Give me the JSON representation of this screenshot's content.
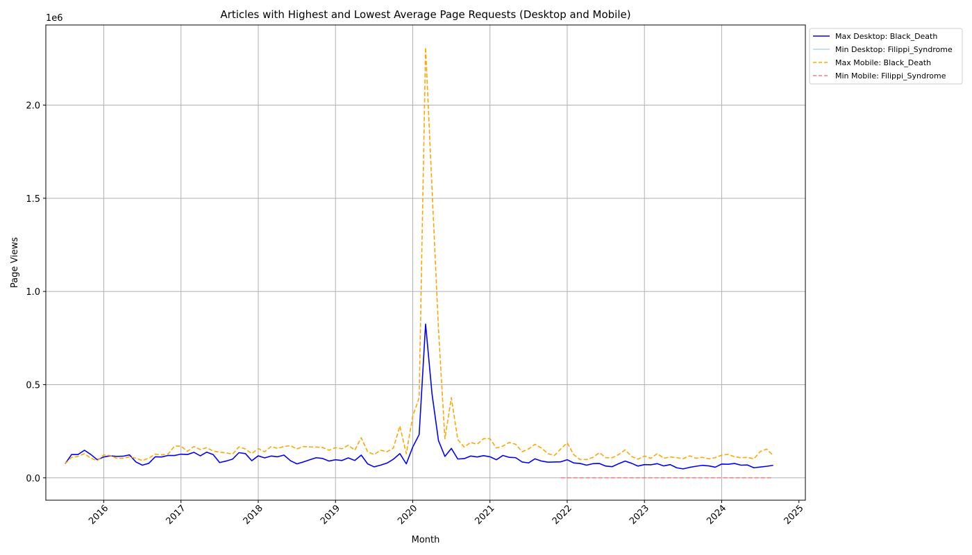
{
  "chart_data": {
    "type": "line",
    "title": "Articles with Highest and Lowest Average Page Requests (Desktop and Mobile)",
    "xlabel": "Month",
    "ylabel": "Page Views",
    "y_offset_label": "1e6",
    "x_ticks": [
      "2016",
      "2017",
      "2018",
      "2019",
      "2020",
      "2021",
      "2022",
      "2023",
      "2024",
      "2025"
    ],
    "y_ticks": [
      "0.0",
      "0.5",
      "1.0",
      "1.5",
      "2.0"
    ],
    "xlim": [
      "2015-04",
      "2025-02"
    ],
    "ylim": [
      -120000,
      2430000
    ],
    "grid": true,
    "legend_position": "outside top-right",
    "series": [
      {
        "name": "Max Desktop: Black_Death",
        "color": "#0000ff",
        "style": "solid",
        "start": "2015-07",
        "values": [
          75000,
          125000,
          125000,
          148000,
          125000,
          97000,
          112000,
          118000,
          115000,
          116000,
          123000,
          85000,
          68000,
          78000,
          113000,
          112000,
          120000,
          120000,
          127000,
          125000,
          137000,
          118000,
          138000,
          125000,
          82000,
          90000,
          100000,
          135000,
          130000,
          92000,
          118000,
          107000,
          117000,
          113000,
          122000,
          92000,
          75000,
          85000,
          97000,
          108000,
          104000,
          90000,
          97000,
          93000,
          107000,
          93000,
          122000,
          75000,
          59000,
          68000,
          79000,
          100000,
          130000,
          75000,
          165000,
          232000,
          825000,
          450000,
          200000,
          115000,
          158000,
          101000,
          103000,
          117000,
          112000,
          119000,
          113000,
          97000,
          120000,
          110000,
          108000,
          85000,
          80000,
          102000,
          90000,
          84000,
          85000,
          86000,
          97000,
          80000,
          77000,
          68000,
          76000,
          77000,
          63000,
          60000,
          76000,
          90000,
          78000,
          63000,
          71000,
          70000,
          76000,
          64000,
          71000,
          54000,
          48000,
          56000,
          62000,
          67000,
          64000,
          57000,
          74000,
          73000,
          77000,
          68000,
          69000,
          54000,
          58000,
          62000,
          67000
        ]
      },
      {
        "name": "Min Desktop: Filippi_Syndrome",
        "color": "#add8e6",
        "style": "solid",
        "start": "2021-12",
        "values": [
          110,
          90,
          100,
          95,
          105,
          90,
          100,
          95,
          110,
          100,
          90,
          95,
          100,
          105,
          90,
          95,
          100,
          110,
          95,
          90,
          100,
          95,
          105,
          100,
          90,
          95,
          100,
          110,
          100,
          95,
          90,
          100,
          105,
          95
        ]
      },
      {
        "name": "Max Mobile: Black_Death",
        "color": "#ffa500",
        "style": "dashed",
        "start": "2015-07",
        "values": [
          75000,
          110000,
          115000,
          130000,
          105000,
          92000,
          123000,
          120000,
          105000,
          105000,
          113000,
          105000,
          93000,
          105000,
          127000,
          123000,
          128000,
          170000,
          170000,
          142000,
          168000,
          152000,
          162000,
          143000,
          138000,
          134000,
          127000,
          166000,
          155000,
          130000,
          157000,
          140000,
          168000,
          158000,
          168000,
          173000,
          155000,
          168000,
          166000,
          165000,
          163000,
          148000,
          162000,
          156000,
          175000,
          148000,
          215000,
          140000,
          125000,
          148000,
          140000,
          160000,
          278000,
          130000,
          330000,
          430000,
          2310000,
          1550000,
          800000,
          210000,
          430000,
          205000,
          165000,
          190000,
          180000,
          210000,
          210000,
          160000,
          170000,
          190000,
          180000,
          140000,
          155000,
          180000,
          160000,
          130000,
          120000,
          155000,
          188000,
          125000,
          98000,
          98000,
          110000,
          135000,
          108000,
          108000,
          125000,
          150000,
          115000,
          100000,
          117000,
          105000,
          130000,
          105000,
          112000,
          108000,
          103000,
          118000,
          105000,
          110000,
          102000,
          108000,
          122000,
          126000,
          113000,
          108000,
          110000,
          102000,
          142000,
          154000,
          120000
        ]
      },
      {
        "name": "Min Mobile: Filippi_Syndrome",
        "color": "#f08080",
        "style": "dashed",
        "start": "2021-12",
        "values": [
          150,
          130,
          140,
          160,
          120,
          130,
          150,
          140,
          130,
          120,
          160,
          140,
          130,
          150,
          120,
          140,
          130,
          160,
          150,
          130,
          140,
          120,
          150,
          130,
          140,
          160,
          130,
          120,
          150,
          140,
          130,
          150,
          140,
          130
        ]
      }
    ]
  }
}
